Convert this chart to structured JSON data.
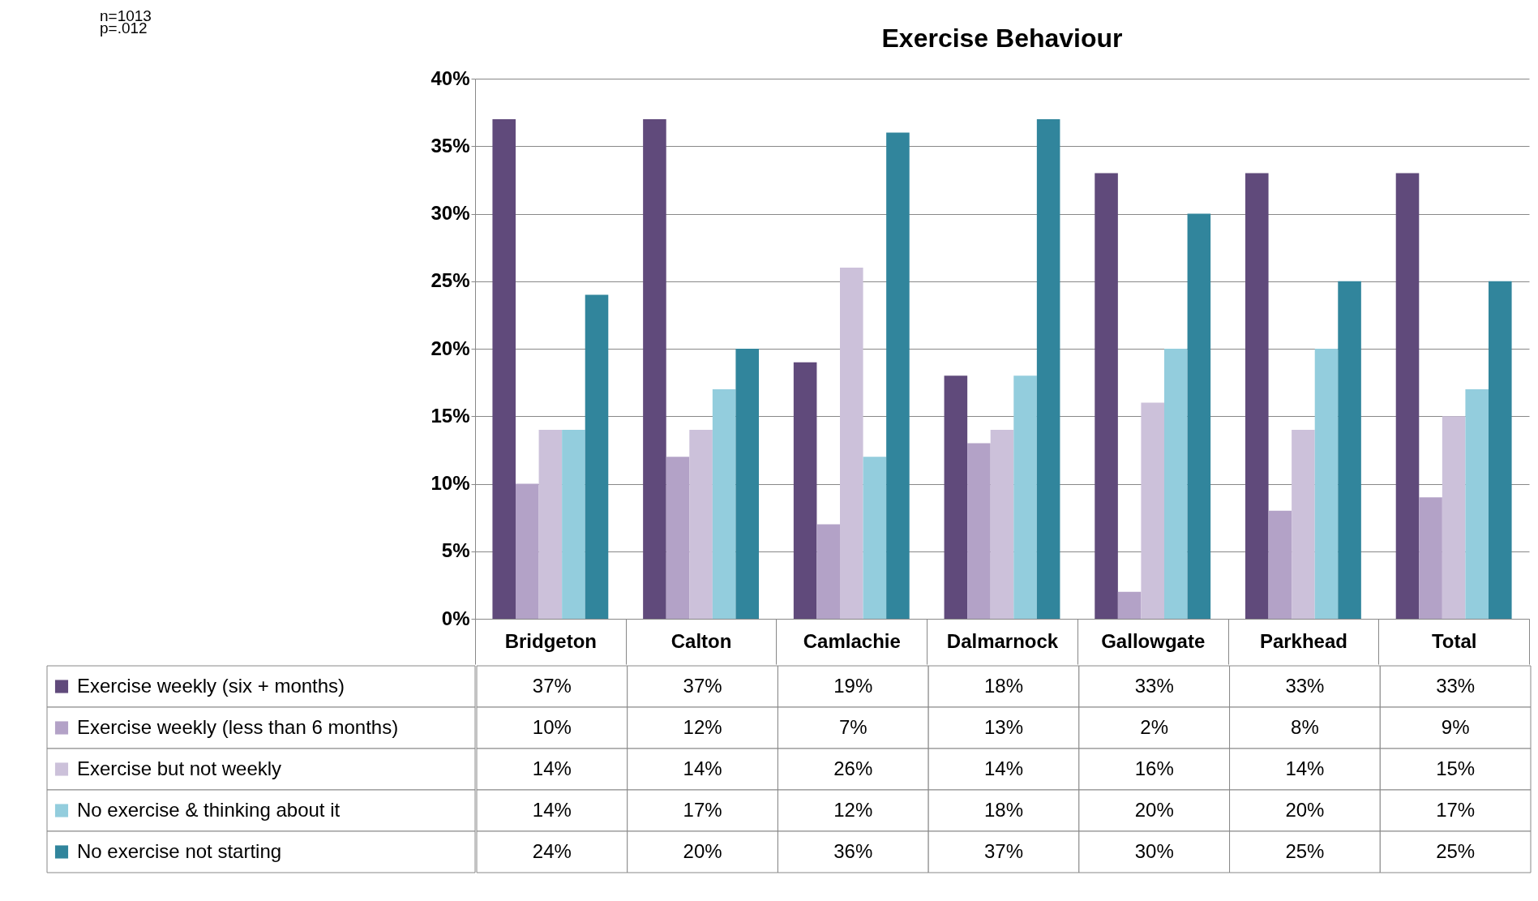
{
  "chart_data": {
    "type": "bar",
    "title": "Exercise Behaviour",
    "annotations": [
      "n=1013",
      "p=.012"
    ],
    "categories": [
      "Bridgeton",
      "Calton",
      "Camlachie",
      "Dalmarnock",
      "Gallowgate",
      "Parkhead",
      "Total"
    ],
    "series": [
      {
        "name": "Exercise weekly (six + months)",
        "color": "#604a7b",
        "values": [
          37,
          37,
          19,
          18,
          33,
          33,
          33
        ],
        "value_labels": [
          "37%",
          "37%",
          "19%",
          "18%",
          "33%",
          "33%",
          "33%"
        ]
      },
      {
        "name": "Exercise weekly (less than 6 months)",
        "color": "#b3a2c7",
        "values": [
          10,
          12,
          7,
          13,
          2,
          8,
          9
        ],
        "value_labels": [
          "10%",
          "12%",
          "7%",
          "13%",
          "2%",
          "8%",
          "9%"
        ]
      },
      {
        "name": "Exercise but not weekly",
        "color": "#ccc1da",
        "values": [
          14,
          14,
          26,
          14,
          16,
          14,
          15
        ],
        "value_labels": [
          "14%",
          "14%",
          "26%",
          "14%",
          "16%",
          "14%",
          "15%"
        ]
      },
      {
        "name": "No exercise & thinking about it",
        "color": "#93cddd",
        "values": [
          14,
          17,
          12,
          18,
          20,
          20,
          17
        ],
        "value_labels": [
          "14%",
          "17%",
          "12%",
          "18%",
          "20%",
          "20%",
          "17%"
        ]
      },
      {
        "name": "No exercise not starting",
        "color": "#31859c",
        "values": [
          24,
          20,
          36,
          37,
          30,
          25,
          25
        ],
        "value_labels": [
          "24%",
          "20%",
          "36%",
          "37%",
          "30%",
          "25%",
          "25%"
        ]
      }
    ],
    "ylim": [
      0,
      40
    ],
    "yticks": [
      {
        "value": 0,
        "label": "0%"
      },
      {
        "value": 5,
        "label": "5%"
      },
      {
        "value": 10,
        "label": "10%"
      },
      {
        "value": 15,
        "label": "15%"
      },
      {
        "value": 20,
        "label": "20%"
      },
      {
        "value": 25,
        "label": "25%"
      },
      {
        "value": 30,
        "label": "30%"
      },
      {
        "value": 35,
        "label": "35%"
      },
      {
        "value": 40,
        "label": "40%"
      }
    ],
    "grid": "y",
    "legend": "bottom"
  }
}
